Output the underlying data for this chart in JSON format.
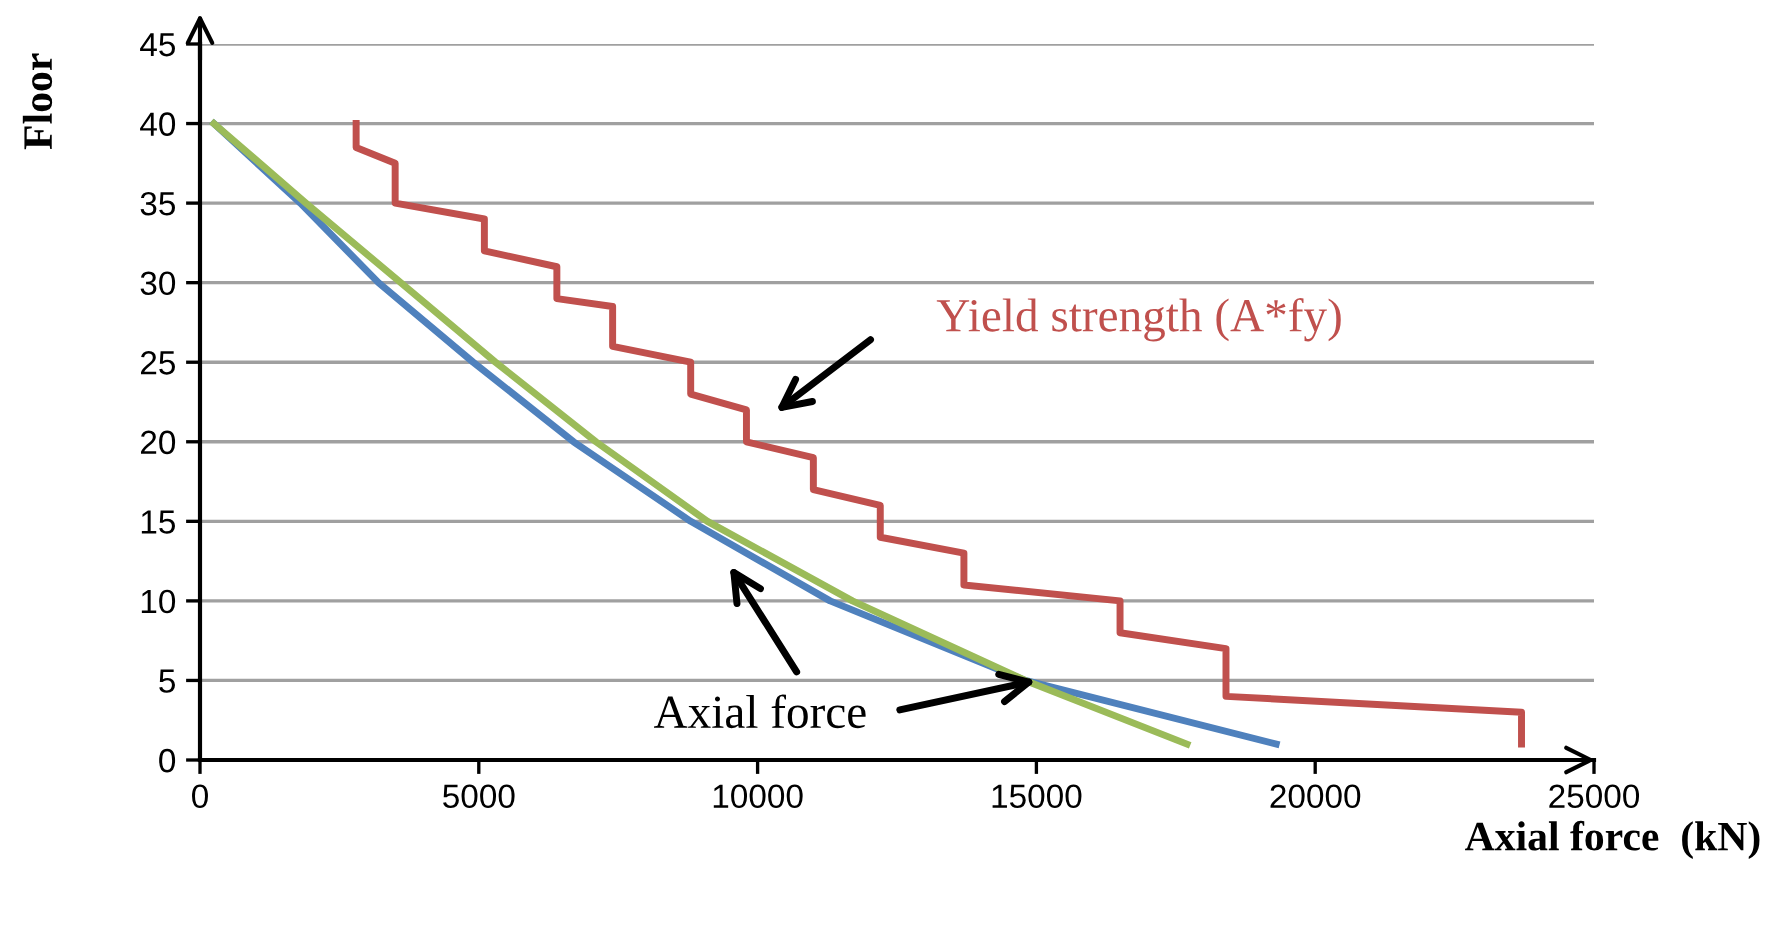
{
  "chart_data": {
    "type": "line",
    "xlabel": "Axial force  (kN)",
    "ylabel": "Floor",
    "xlim": [
      0,
      25000
    ],
    "xticks": [
      0,
      5000,
      10000,
      15000,
      20000,
      25000
    ],
    "ylim": [
      0,
      45
    ],
    "yticks": [
      0,
      5,
      10,
      15,
      20,
      25,
      30,
      35,
      40,
      45
    ],
    "grid": "y",
    "marker": "none",
    "line_style": "solid",
    "series": [
      {
        "color": "#c0504d",
        "x": [
          2800,
          2800,
          3500,
          3500,
          5100,
          5100,
          6400,
          6400,
          7400,
          7400,
          8800,
          8800,
          9800,
          9800,
          11000,
          11000,
          12200,
          12200,
          13700,
          13700,
          16500,
          16500,
          18400,
          18400,
          23700,
          23700
        ],
        "values": [
          40,
          38.5,
          37.5,
          35,
          34,
          32,
          31,
          29,
          28.5,
          26,
          25,
          23,
          22,
          20,
          19,
          17,
          16,
          14,
          13,
          11,
          10,
          8,
          7,
          4,
          3,
          1
        ]
      },
      {
        "color": "#4f81bd",
        "x": [
          250,
          1800,
          3200,
          4900,
          6700,
          8800,
          11300,
          14800,
          19300
        ],
        "values": [
          40,
          35,
          30,
          25,
          20,
          15,
          10,
          5,
          1
        ]
      },
      {
        "color": "#9bbb59",
        "x": [
          250,
          1900,
          3600,
          5300,
          7100,
          9100,
          11700,
          14800,
          17700
        ],
        "values": [
          40,
          35,
          30,
          25,
          20,
          15,
          10,
          5,
          1
        ]
      }
    ],
    "annotations": [
      "Yield strength (A*fy)",
      {
        "text": "Axial force",
        "x": 15000,
        "y": 5
      }
    ]
  }
}
